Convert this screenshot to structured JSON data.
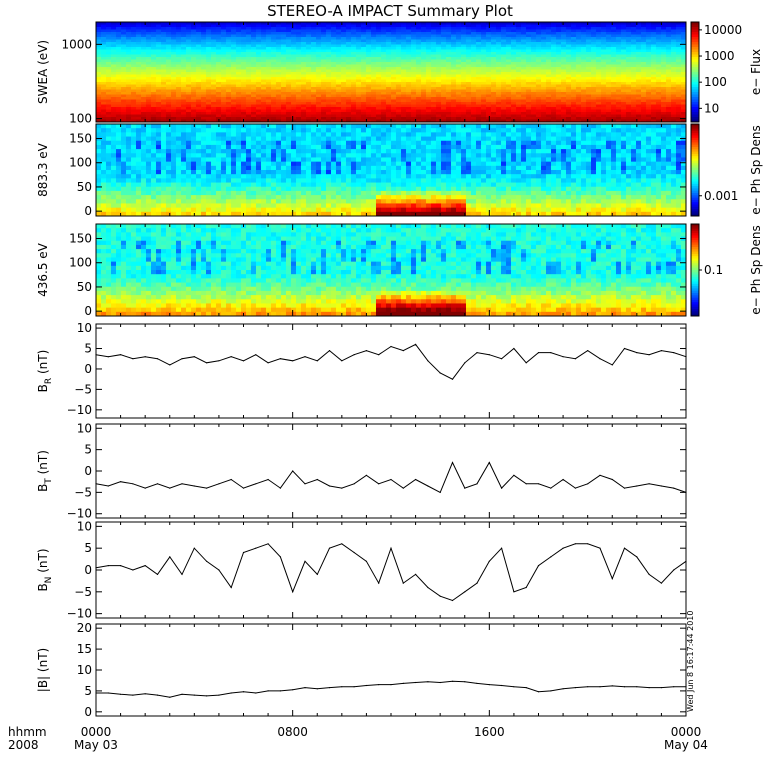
{
  "chart_data": {
    "title": "STEREO-A IMPACT Summary Plot",
    "time_axis": {
      "range": [
        "2008-05-03 00:00",
        "2008-05-04 00:00"
      ],
      "ticks": [
        {
          "hhmm": "0000",
          "date": "May 03"
        },
        {
          "hhmm": "0800",
          "date": ""
        },
        {
          "hhmm": "1600",
          "date": ""
        },
        {
          "hhmm": "0000",
          "date": "May 04"
        }
      ],
      "label_top": "hhmm",
      "label_bottom": "2008"
    },
    "stamp": "Wed Jun  8 16:17:44 2010",
    "panels": [
      {
        "type": "heatmap",
        "ylabel": "SWEA (eV)",
        "yscale": "log",
        "ylim": [
          90,
          2000
        ],
        "yticks": [
          "1000",
          "100"
        ],
        "colorbar": {
          "label": "e− Flux",
          "scale": "log",
          "ticks": [
            "10000",
            "1000",
            "100",
            "10"
          ],
          "range": [
            3,
            20000
          ]
        }
      },
      {
        "type": "heatmap",
        "ylabel": "883.3 eV",
        "ylim": [
          -10,
          180
        ],
        "yticks": [
          "150",
          "100",
          "50",
          "0"
        ],
        "colorbar": {
          "label": "e− Ph Sp Dens",
          "ticks": [
            "0.001"
          ]
        }
      },
      {
        "type": "heatmap",
        "ylabel": "436.5 eV",
        "ylim": [
          -10,
          180
        ],
        "yticks": [
          "150",
          "100",
          "50",
          "0"
        ],
        "colorbar": {
          "label": "e− Ph Sp Dens",
          "ticks": [
            "0.1"
          ]
        }
      },
      {
        "type": "line",
        "ylabel": "B",
        "ysub": "R",
        "yunit": " (nT)",
        "ylim": [
          -12,
          11
        ],
        "yticks": [
          "10",
          "5",
          "0",
          "−5",
          "−10"
        ],
        "t": [
          0,
          0.5,
          1,
          1.5,
          2,
          2.5,
          3,
          3.5,
          4,
          4.5,
          5,
          5.5,
          6,
          6.5,
          7,
          7.5,
          8,
          8.5,
          9,
          9.5,
          10,
          10.5,
          11,
          11.5,
          12,
          12.5,
          13,
          13.5,
          14,
          14.5,
          15,
          15.5,
          16,
          16.5,
          17,
          17.5,
          18,
          18.5,
          19,
          19.5,
          20,
          20.5,
          21,
          21.5,
          22,
          22.5,
          23,
          23.5,
          24
        ],
        "values": [
          3.5,
          3.0,
          3.5,
          2.5,
          3.0,
          2.5,
          1.0,
          2.5,
          3.0,
          1.5,
          2.0,
          3.0,
          2.0,
          3.5,
          1.5,
          2.5,
          2.0,
          3.0,
          2.0,
          4.5,
          2.0,
          3.5,
          4.5,
          3.5,
          5.5,
          4.5,
          6.0,
          2.0,
          -1.0,
          -2.5,
          1.5,
          4.0,
          3.5,
          2.5,
          5.0,
          1.5,
          4.0,
          4.0,
          3.0,
          2.5,
          4.5,
          2.5,
          1.0,
          5.0,
          4.0,
          3.5,
          4.5,
          4.0,
          3.0
        ]
      },
      {
        "type": "line",
        "ylabel": "B",
        "ysub": "T",
        "yunit": " (nT)",
        "ylim": [
          -11,
          11
        ],
        "yticks": [
          "10",
          "5",
          "0",
          "−5",
          "−10"
        ],
        "t": [
          0,
          0.5,
          1,
          1.5,
          2,
          2.5,
          3,
          3.5,
          4,
          4.5,
          5,
          5.5,
          6,
          6.5,
          7,
          7.5,
          8,
          8.5,
          9,
          9.5,
          10,
          10.5,
          11,
          11.5,
          12,
          12.5,
          13,
          13.5,
          14,
          14.5,
          15,
          15.5,
          16,
          16.5,
          17,
          17.5,
          18,
          18.5,
          19,
          19.5,
          20,
          20.5,
          21,
          21.5,
          22,
          22.5,
          23,
          23.5,
          24
        ],
        "values": [
          -3,
          -3.5,
          -2.5,
          -3,
          -4,
          -3,
          -4,
          -3,
          -3.5,
          -4,
          -3,
          -2,
          -4,
          -3,
          -2,
          -4,
          0,
          -3,
          -2,
          -3.5,
          -4,
          -3,
          -1,
          -3,
          -2,
          -4,
          -2,
          -3.5,
          -5,
          2,
          -4,
          -3,
          2,
          -4,
          -1,
          -3,
          -3,
          -4,
          -2,
          -4,
          -3,
          -1,
          -2,
          -4,
          -3.5,
          -3,
          -3.5,
          -4,
          -5
        ]
      },
      {
        "type": "line",
        "ylabel": "B",
        "ysub": "N",
        "yunit": " (nT)",
        "ylim": [
          -11,
          11
        ],
        "yticks": [
          "10",
          "5",
          "0",
          "−5",
          "−10"
        ],
        "t": [
          0,
          0.5,
          1,
          1.5,
          2,
          2.5,
          3,
          3.5,
          4,
          4.5,
          5,
          5.5,
          6,
          6.5,
          7,
          7.5,
          8,
          8.5,
          9,
          9.5,
          10,
          10.5,
          11,
          11.5,
          12,
          12.5,
          13,
          13.5,
          14,
          14.5,
          15,
          15.5,
          16,
          16.5,
          17,
          17.5,
          18,
          18.5,
          19,
          19.5,
          20,
          20.5,
          21,
          21.5,
          22,
          22.5,
          23,
          23.5,
          24
        ],
        "values": [
          0.5,
          1,
          1,
          0,
          1,
          -1,
          3,
          -1,
          5,
          2,
          0,
          -4,
          4,
          5,
          6,
          3,
          -5,
          2,
          -1,
          5,
          6,
          4,
          2,
          -3,
          5,
          -3,
          -1,
          -4,
          -6,
          -7,
          -5,
          -3,
          2,
          5,
          -5,
          -4,
          1,
          3,
          5,
          6,
          6,
          5,
          -2,
          5,
          3,
          -1,
          -3,
          0,
          2
        ]
      },
      {
        "type": "line",
        "ylabel": "|B|",
        "ysub": "",
        "yunit": " (nT)",
        "ylim": [
          -1,
          21
        ],
        "yticks": [
          "20",
          "15",
          "10",
          "5",
          "0"
        ],
        "t": [
          0,
          0.5,
          1,
          1.5,
          2,
          2.5,
          3,
          3.5,
          4,
          4.5,
          5,
          5.5,
          6,
          6.5,
          7,
          7.5,
          8,
          8.5,
          9,
          9.5,
          10,
          10.5,
          11,
          11.5,
          12,
          12.5,
          13,
          13.5,
          14,
          14.5,
          15,
          15.5,
          16,
          16.5,
          17,
          17.5,
          18,
          18.5,
          19,
          19.5,
          20,
          20.5,
          21,
          21.5,
          22,
          22.5,
          23,
          23.5,
          24
        ],
        "values": [
          4.5,
          4.5,
          4.2,
          4,
          4.3,
          4,
          3.5,
          4.2,
          4,
          3.8,
          4,
          4.5,
          4.8,
          4.5,
          5,
          5,
          5.3,
          5.8,
          5.5,
          5.8,
          6,
          6,
          6.3,
          6.5,
          6.5,
          6.8,
          7,
          7.2,
          7,
          7.3,
          7.2,
          6.8,
          6.5,
          6.3,
          6,
          5.8,
          4.8,
          5,
          5.5,
          5.8,
          6,
          6,
          6.2,
          6,
          6,
          5.8,
          5.8,
          6,
          6
        ]
      }
    ]
  }
}
